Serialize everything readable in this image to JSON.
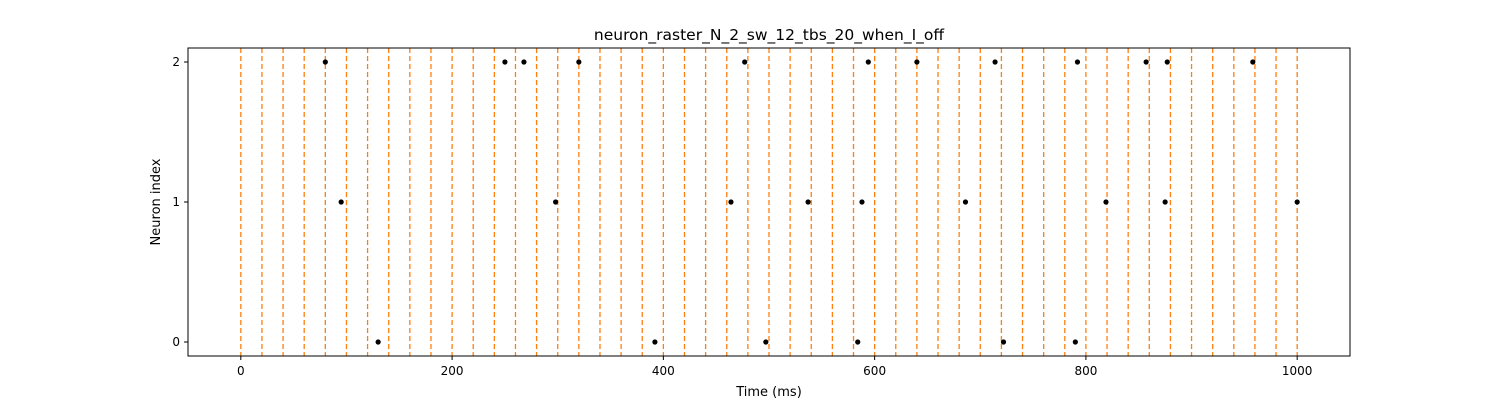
{
  "chart_data": {
    "type": "scatter",
    "title": "neuron_raster_N_2_sw_12_tbs_20_when_I_off",
    "xlabel": "Time (ms)",
    "ylabel": "Neuron index",
    "xlim": [
      -50,
      1050
    ],
    "ylim": [
      -0.1,
      2.1
    ],
    "x_ticks": [
      0,
      200,
      400,
      600,
      800,
      1000
    ],
    "y_ticks": [
      0,
      1,
      2
    ],
    "grid": false,
    "marker_color": "#000000",
    "vline_color": "#ff7f0e",
    "vline_style": "dashed",
    "vlines": [
      0,
      20,
      40,
      60,
      80,
      100,
      120,
      140,
      160,
      180,
      200,
      220,
      240,
      260,
      280,
      300,
      320,
      340,
      360,
      380,
      400,
      420,
      440,
      460,
      480,
      500,
      520,
      540,
      560,
      580,
      600,
      620,
      640,
      660,
      680,
      700,
      720,
      740,
      760,
      780,
      800,
      820,
      840,
      860,
      880,
      900,
      920,
      940,
      960,
      980,
      1000
    ],
    "series": [
      {
        "neuron": 0,
        "spike_times": [
          130,
          392,
          497,
          584,
          722,
          790
        ]
      },
      {
        "neuron": 1,
        "spike_times": [
          95,
          298,
          464,
          537,
          588,
          686,
          819,
          875,
          1000
        ]
      },
      {
        "neuron": 2,
        "spike_times": [
          80,
          250,
          268,
          320,
          477,
          594,
          640,
          714,
          792,
          857,
          877,
          958
        ]
      }
    ]
  }
}
